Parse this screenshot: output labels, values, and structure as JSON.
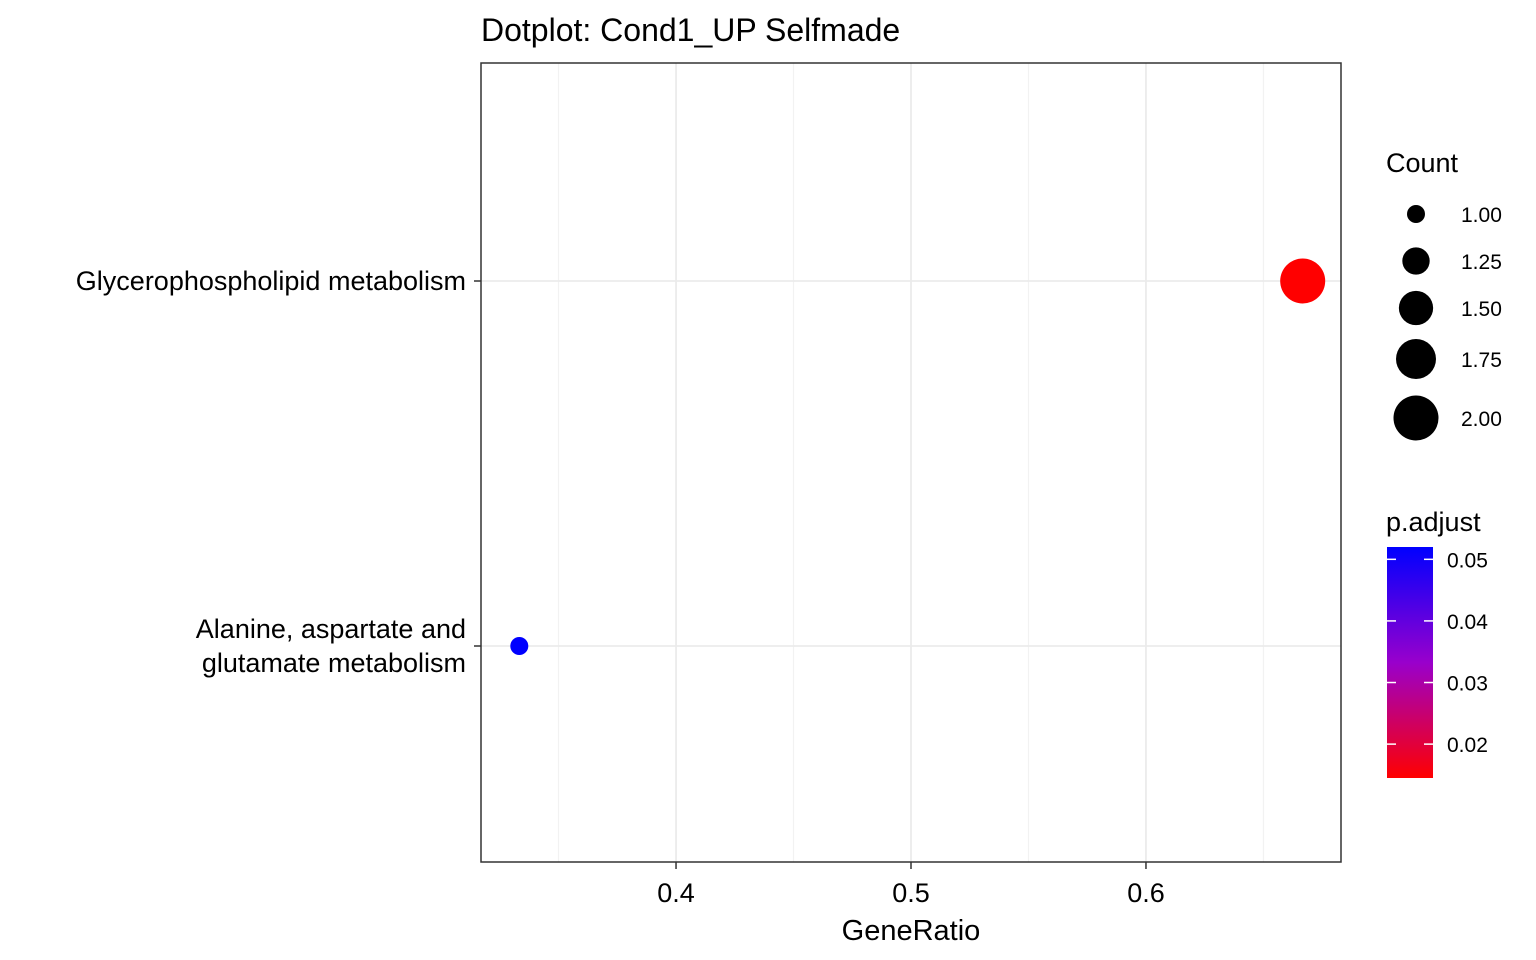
{
  "chart_data": {
    "type": "scatter",
    "title": "Dotplot: Cond1_UP Selfmade",
    "xlabel": "GeneRatio",
    "ylabel": "",
    "xlim": [
      0.317,
      0.683
    ],
    "xticks": [
      0.4,
      0.5,
      0.6
    ],
    "xtick_labels": [
      "0.4",
      "0.5",
      "0.6"
    ],
    "grid": true,
    "categories": [
      "Glycerophospholipid metabolism",
      "Alanine, aspartate and\nglutamate metabolism"
    ],
    "points": [
      {
        "category": "Glycerophospholipid metabolism",
        "x": 0.6667,
        "count": 2,
        "p_adjust": 0.0145
      },
      {
        "category": "Alanine, aspartate and\nglutamate metabolism",
        "x": 0.3333,
        "count": 1,
        "p_adjust": 0.052
      }
    ],
    "legend_count": {
      "title": "Count",
      "values": [
        1.0,
        1.25,
        1.5,
        1.75,
        2.0
      ],
      "labels": [
        "1.00",
        "1.25",
        "1.50",
        "1.75",
        "2.00"
      ]
    },
    "legend_color": {
      "title": "p.adjust",
      "range": [
        0.0145,
        0.052
      ],
      "ticks": [
        0.05,
        0.04,
        0.03,
        0.02
      ],
      "tick_labels": [
        "0.05",
        "0.04",
        "0.03",
        "0.02"
      ],
      "low_color": "#FF0000",
      "high_color": "#0000FF"
    },
    "legend_placement": "right"
  }
}
